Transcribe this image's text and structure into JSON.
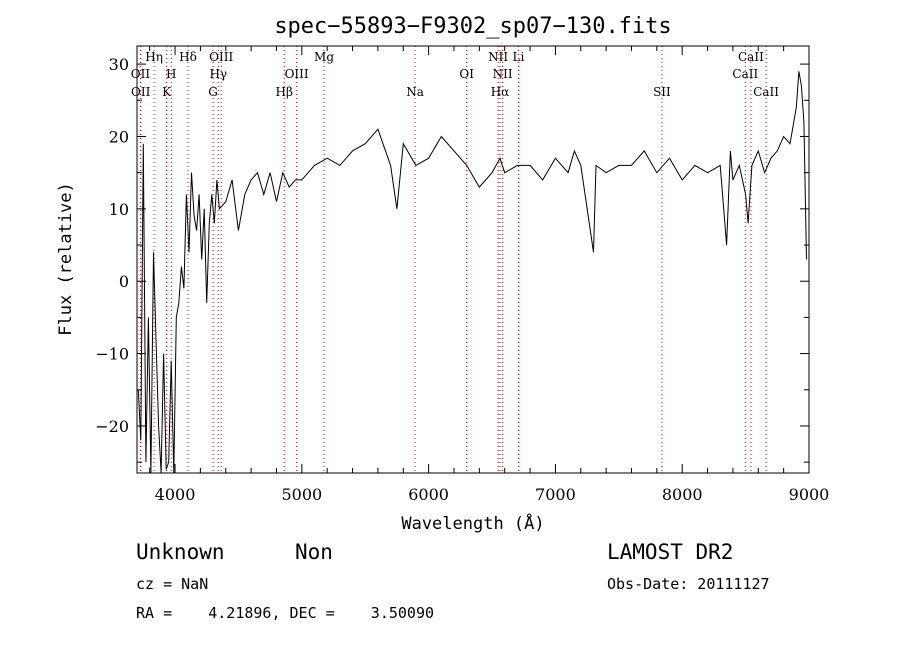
{
  "chart_data": {
    "type": "line",
    "title": "spec−55893−F9302_sp07−130.fits",
    "xlabel": "Wavelength (Å)",
    "ylabel": "Flux (relative)",
    "xlim": [
      3700,
      9000
    ],
    "ylim": [
      -26.5,
      32.5
    ],
    "xticks": [
      4000,
      5000,
      6000,
      7000,
      8000,
      9000
    ],
    "yticks": [
      -20,
      -10,
      0,
      10,
      20,
      30
    ],
    "xtick_labels": [
      "4000",
      "5000",
      "6000",
      "7000",
      "8000",
      "9000"
    ],
    "ytick_labels": [
      "−20",
      "−10",
      "0",
      "10",
      "20",
      "30"
    ],
    "series": [
      {
        "x": [
          3710,
          3730,
          3750,
          3770,
          3790,
          3810,
          3830,
          3850,
          3870,
          3890,
          3910,
          3930,
          3950,
          3970,
          3990,
          4010,
          4030,
          4050,
          4070,
          4090,
          4110,
          4130,
          4150,
          4170,
          4190,
          4210,
          4230,
          4250,
          4270,
          4290,
          4310,
          4330,
          4350,
          4400,
          4450,
          4500,
          4550,
          4600,
          4650,
          4700,
          4750,
          4800,
          4850,
          4900,
          4950,
          5000,
          5100,
          5200,
          5300,
          5400,
          5500,
          5600,
          5700,
          5750,
          5800,
          5900,
          6000,
          6100,
          6200,
          6300,
          6400,
          6500,
          6563,
          6600,
          6700,
          6800,
          6900,
          7000,
          7100,
          7150,
          7200,
          7300,
          7320,
          7400,
          7500,
          7600,
          7700,
          7800,
          7900,
          8000,
          8100,
          8200,
          8300,
          8350,
          8380,
          8400,
          8450,
          8500,
          8520,
          8550,
          8600,
          8650,
          8700,
          8750,
          8800,
          8850,
          8900,
          8920,
          8940,
          8960,
          8980
        ],
        "y": [
          -15,
          -22,
          19,
          -25,
          -5,
          -27,
          4,
          -8,
          -20,
          -27,
          -10,
          -26,
          -25,
          -11,
          -27,
          -5,
          -3,
          2,
          -1,
          12,
          4,
          15,
          9,
          7,
          12,
          3,
          10,
          -3,
          8,
          12,
          8,
          14,
          10,
          11,
          14,
          7,
          12,
          14,
          15,
          12,
          15,
          11,
          15,
          13,
          14,
          14,
          16,
          17,
          16,
          18,
          19,
          21,
          16,
          10,
          19,
          16,
          17,
          20,
          18,
          16,
          13,
          15,
          17,
          15,
          16,
          16,
          14,
          17,
          15,
          18,
          16,
          4,
          16,
          15,
          16,
          16,
          18,
          15,
          17,
          14,
          16,
          15,
          16,
          5,
          18,
          14,
          16,
          12,
          8,
          16,
          18,
          15,
          17,
          18,
          20,
          19,
          24,
          29,
          27,
          22,
          3
        ]
      }
    ],
    "line_markers": [
      {
        "x": 3727,
        "label": "OII",
        "row": 1
      },
      {
        "x": 3729,
        "label": "OII",
        "row": 2
      },
      {
        "x": 3835,
        "label": "Hη",
        "row": 0
      },
      {
        "x": 3934,
        "label": "K",
        "row": 2
      },
      {
        "x": 3970,
        "label": "H",
        "row": 1
      },
      {
        "x": 4102,
        "label": "Hδ",
        "row": 0
      },
      {
        "x": 4300,
        "label": "G",
        "row": 2
      },
      {
        "x": 4341,
        "label": "Hγ",
        "row": 1
      },
      {
        "x": 4364,
        "label": "OIII",
        "row": 0
      },
      {
        "x": 4861,
        "label": "Hβ",
        "row": 2
      },
      {
        "x": 4959,
        "label": "OIII",
        "row": 1
      },
      {
        "x": 5175,
        "label": "Mg",
        "row": 0
      },
      {
        "x": 5893,
        "label": "Na",
        "row": 2
      },
      {
        "x": 6300,
        "label": "OI",
        "row": 1
      },
      {
        "x": 6548,
        "label": "NII",
        "row": 0
      },
      {
        "x": 6563,
        "label": "Hα",
        "row": 2
      },
      {
        "x": 6584,
        "label": "NII",
        "row": 1
      },
      {
        "x": 6708,
        "label": "Li",
        "row": 0
      },
      {
        "x": 7840,
        "label": "SII",
        "row": 2
      },
      {
        "x": 8498,
        "label": "CaII",
        "row": 1
      },
      {
        "x": 8542,
        "label": "CaII",
        "row": 0
      },
      {
        "x": 8662,
        "label": "CaII",
        "row": 2
      }
    ],
    "line_color": "#000000",
    "marker_color": "#cc0000",
    "grid": false
  },
  "info": {
    "class_label": "Unknown",
    "subclass_label": "Non",
    "survey": "LAMOST DR2",
    "cz": "cz = NaN",
    "obs_date": "Obs-Date: 20111127",
    "coords": "RA =    4.21896, DEC =    3.50090"
  }
}
